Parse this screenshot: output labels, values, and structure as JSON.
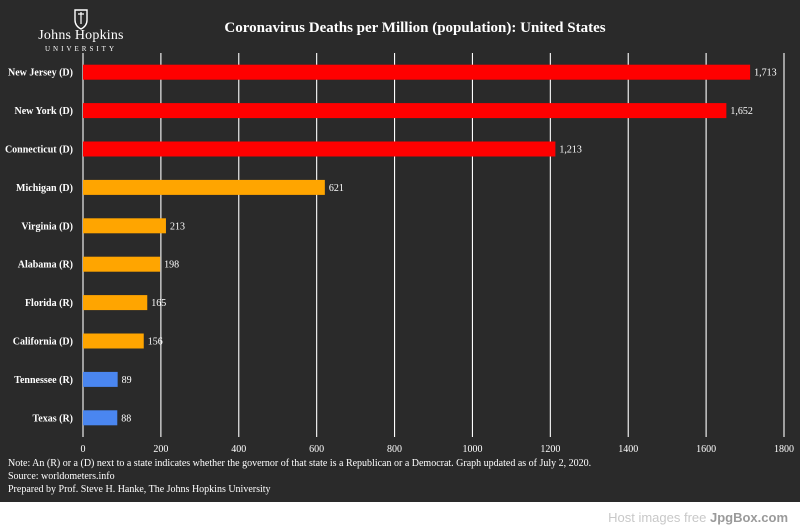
{
  "logo": {
    "name": "Johns Hopkins",
    "sub": "UNIVERSITY",
    "text": "Johns Hopkins University"
  },
  "chart_data": {
    "type": "bar",
    "orientation": "horizontal",
    "title": "Coronavirus Deaths per Million (population): United States",
    "xlabel": "",
    "ylabel": "",
    "xlim": [
      0,
      1800
    ],
    "x_ticks": [
      0,
      200,
      400,
      600,
      800,
      1000,
      1200,
      1400,
      1600,
      1800
    ],
    "grid": true,
    "categories": [
      "New Jersey (D)",
      "New York (D)",
      "Connecticut (D)",
      "Michigan (D)",
      "Virginia (D)",
      "Alabama (R)",
      "Florida (R)",
      "California (D)",
      "Tennessee (R)",
      "Texas (R)"
    ],
    "values": [
      1713,
      1652,
      1213,
      621,
      213,
      198,
      165,
      156,
      89,
      88
    ],
    "value_labels": [
      "1,713",
      "1,652",
      "1,213",
      "621",
      "213",
      "198",
      "165",
      "156",
      "89",
      "88"
    ],
    "bar_colors": [
      "#ff0000",
      "#ff0000",
      "#ff0000",
      "#ffa500",
      "#ffa500",
      "#ffa500",
      "#ffa500",
      "#ffa500",
      "#4a86f0",
      "#4a86f0"
    ]
  },
  "notes": [
    "Note: An (R) or a (D) next to a state indicates whether the governor of that state is a Republican or a Democrat. Graph updated as of July 2, 2020.",
    "Source: worldometers.info",
    "Prepared by Prof. Steve H. Hanke, The Johns Hopkins University"
  ],
  "watermark": {
    "prefix": "Host images free ",
    "brand": "JpgBox.com"
  },
  "colors": {
    "background": "#2a2a2a",
    "text": "#ffffff",
    "grid": "#ffffff"
  }
}
